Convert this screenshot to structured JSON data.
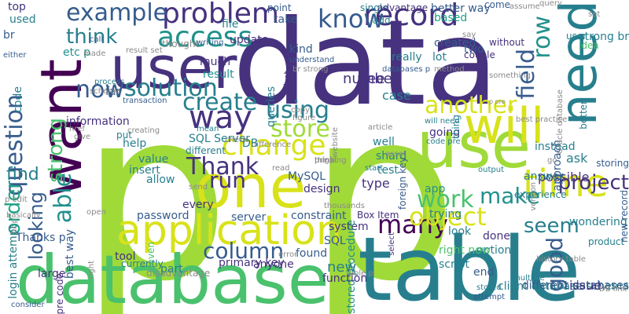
{
  "palette": {
    "navy": "#46327e",
    "deep": "#440154",
    "blue": "#365c8d",
    "teal": "#277f8e",
    "sea": "#21918c",
    "cyan": "#1fa187",
    "green": "#4ac16d",
    "lime": "#a0da39",
    "yellow": "#fde725",
    "gold": "#d8e219",
    "grey": "#8a8a8a"
  },
  "words": [
    {
      "text": "p"
    },
    {
      "text": "p"
    },
    {
      "text": "data"
    },
    {
      "text": "table"
    },
    {
      "text": "database"
    },
    {
      "text": "use"
    },
    {
      "text": "one"
    },
    {
      "text": "user"
    },
    {
      "text": "want"
    },
    {
      "text": "need"
    },
    {
      "text": "will"
    },
    {
      "text": "application"
    },
    {
      "text": "time"
    },
    {
      "text": "change"
    },
    {
      "text": "way"
    },
    {
      "text": "problem"
    },
    {
      "text": "record"
    },
    {
      "text": "example"
    },
    {
      "text": "access"
    },
    {
      "text": "know"
    },
    {
      "text": "solution"
    },
    {
      "text": "create"
    },
    {
      "text": "question"
    },
    {
      "text": "now"
    },
    {
      "text": "using"
    },
    {
      "text": "store"
    },
    {
      "text": "many"
    },
    {
      "text": "column"
    },
    {
      "text": "object"
    },
    {
      "text": "work"
    },
    {
      "text": "row"
    },
    {
      "text": "field"
    },
    {
      "text": "project"
    },
    {
      "text": "make"
    },
    {
      "text": "good"
    },
    {
      "text": "seem"
    },
    {
      "text": "order"
    },
    {
      "text": "able"
    },
    {
      "text": "strong"
    },
    {
      "text": "Thank"
    },
    {
      "text": "run"
    },
    {
      "text": "another"
    },
    {
      "text": "think"
    },
    {
      "text": "looking"
    },
    {
      "text": "find"
    },
    {
      "text": "user"
    },
    {
      "text": "idea"
    },
    {
      "text": "strong br"
    },
    {
      "text": "come"
    },
    {
      "text": "query"
    },
    {
      "text": "better way"
    },
    {
      "text": "single"
    },
    {
      "text": "advantage"
    },
    {
      "text": "add"
    },
    {
      "text": "based"
    },
    {
      "text": "created"
    },
    {
      "text": "two"
    },
    {
      "text": "lot"
    },
    {
      "text": "really"
    },
    {
      "text": "kind"
    },
    {
      "text": "queries"
    },
    {
      "text": "first"
    },
    {
      "text": "take"
    },
    {
      "text": "point"
    },
    {
      "text": "top"
    },
    {
      "text": "used"
    },
    {
      "text": "br"
    },
    {
      "text": "etc p"
    },
    {
      "text": "far"
    },
    {
      "text": "file"
    },
    {
      "text": "update"
    },
    {
      "text": "much"
    },
    {
      "text": "result"
    },
    {
      "text": "thought"
    },
    {
      "text": "number"
    },
    {
      "text": "see"
    },
    {
      "text": "case"
    },
    {
      "text": "going"
    },
    {
      "text": "code"
    },
    {
      "text": "information"
    },
    {
      "text": "help"
    },
    {
      "text": "DB"
    },
    {
      "text": "SQL Server"
    },
    {
      "text": "value"
    },
    {
      "text": "insert"
    },
    {
      "text": "allow"
    },
    {
      "text": "every"
    },
    {
      "text": "MySQL"
    },
    {
      "text": "design"
    },
    {
      "text": "well"
    },
    {
      "text": "shard"
    },
    {
      "text": "test"
    },
    {
      "text": "asset"
    },
    {
      "text": "type"
    },
    {
      "text": "app"
    },
    {
      "text": "possible"
    },
    {
      "text": "ask"
    },
    {
      "text": "instead"
    },
    {
      "text": "answer"
    },
    {
      "text": "wondering"
    },
    {
      "text": "approach"
    },
    {
      "text": "better"
    },
    {
      "text": "foreign key"
    },
    {
      "text": "trying"
    },
    {
      "text": "look"
    },
    {
      "text": "option"
    },
    {
      "text": "done"
    },
    {
      "text": "product"
    },
    {
      "text": "system"
    },
    {
      "text": "SQL"
    },
    {
      "text": "found"
    },
    {
      "text": "anyone"
    },
    {
      "text": "stored procedure"
    },
    {
      "text": "primary key"
    },
    {
      "text": "tool"
    },
    {
      "text": "best way"
    },
    {
      "text": "large"
    },
    {
      "text": "Thanks p"
    },
    {
      "text": "login attempt"
    },
    {
      "text": "currently"
    },
    {
      "text": "password"
    },
    {
      "text": "server"
    },
    {
      "text": "constraint"
    },
    {
      "text": "Box Item"
    },
    {
      "text": "right now"
    },
    {
      "text": "script"
    },
    {
      "text": "end"
    },
    {
      "text": "new"
    },
    {
      "text": "client database schema"
    },
    {
      "text": "function"
    },
    {
      "text": "pre code"
    },
    {
      "text": "disadvantage"
    },
    {
      "text": "even"
    },
    {
      "text": "part"
    },
    {
      "text": "put"
    },
    {
      "text": "different"
    },
    {
      "text": "experience"
    },
    {
      "text": "new record"
    },
    {
      "text": "different databases"
    },
    {
      "text": "issue"
    },
    {
      "text": "go"
    },
    {
      "text": "storing"
    },
    {
      "text": "call"
    },
    {
      "text": "process"
    },
    {
      "text": "schema"
    },
    {
      "text": "transaction"
    },
    {
      "text": "understand"
    },
    {
      "text": "method"
    },
    {
      "text": "something"
    },
    {
      "text": "writing"
    },
    {
      "text": "databases p"
    },
    {
      "text": "couple"
    },
    {
      "text": "without"
    },
    {
      "text": "p pre"
    },
    {
      "text": "best practice"
    },
    {
      "text": "figure"
    },
    {
      "text": "will need"
    },
    {
      "text": "code pre"
    },
    {
      "text": "creating"
    },
    {
      "text": "mean"
    },
    {
      "text": "check"
    },
    {
      "text": "read"
    },
    {
      "text": "send"
    },
    {
      "text": "thousands"
    },
    {
      "text": "copy"
    },
    {
      "text": "website"
    },
    {
      "text": "article"
    },
    {
      "text": "thing"
    },
    {
      "text": "set"
    },
    {
      "text": "stored"
    },
    {
      "text": "attempt"
    },
    {
      "text": "multiple"
    },
    {
      "text": "select"
    },
    {
      "text": "output"
    },
    {
      "text": "history table"
    },
    {
      "text": "DB link"
    },
    {
      "text": "Oracle database"
    },
    {
      "text": "consider"
    },
    {
      "text": "right"
    },
    {
      "text": "table p"
    },
    {
      "text": "error"
    },
    {
      "text": "difference"
    },
    {
      "text": "p edit"
    },
    {
      "text": "basically"
    },
    {
      "text": "hr p"
    },
    {
      "text": "either"
    },
    {
      "text": "made"
    },
    {
      "text": "result set"
    },
    {
      "text": "br strong"
    },
    {
      "text": "say"
    },
    {
      "text": "href"
    },
    {
      "text": "give"
    },
    {
      "text": "open"
    },
    {
      "text": "assume"
    },
    {
      "text": "version"
    },
    {
      "text": "start"
    },
    {
      "text": "might"
    },
    {
      "text": "thinking"
    },
    {
      "text": "pre p"
    }
  ]
}
